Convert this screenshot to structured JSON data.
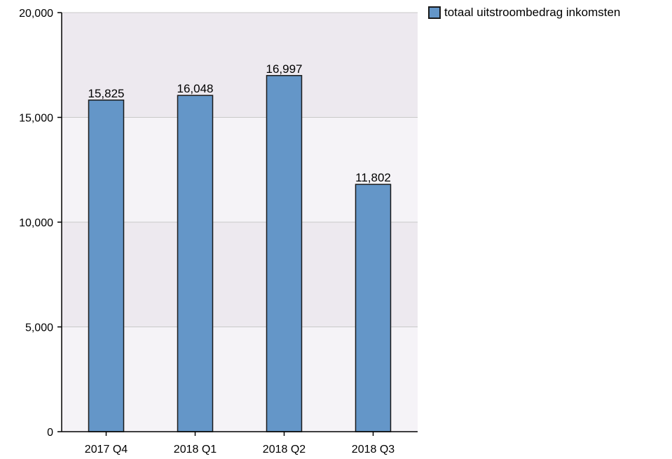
{
  "chart_data": {
    "type": "bar",
    "categories": [
      "2017 Q4",
      "2018 Q1",
      "2018 Q2",
      "2018 Q3"
    ],
    "series": [
      {
        "name": "totaal uitstroombedrag inkomsten",
        "values": [
          15825,
          16048,
          16997,
          11802
        ],
        "color": "#6496c8"
      }
    ],
    "data_labels": [
      "15,825",
      "16,048",
      "16,997",
      "11,802"
    ],
    "yticks": [
      0,
      5000,
      10000,
      15000,
      20000
    ],
    "ytick_labels": [
      "0",
      "5,000",
      "10,000",
      "15,000",
      "20,000"
    ],
    "ylim": [
      0,
      20000
    ],
    "title": "",
    "xlabel": "",
    "ylabel": "",
    "grid": true,
    "legend_position": "top-right",
    "colors": {
      "bar": "#6496c8",
      "bar_stroke": "#1a1a1a",
      "band_light": "#f5f3f7",
      "band_dark": "#ede9ef",
      "grid": "#c9c9c9"
    }
  },
  "legend": {
    "label": "totaal uitstroombedrag inkomsten"
  }
}
